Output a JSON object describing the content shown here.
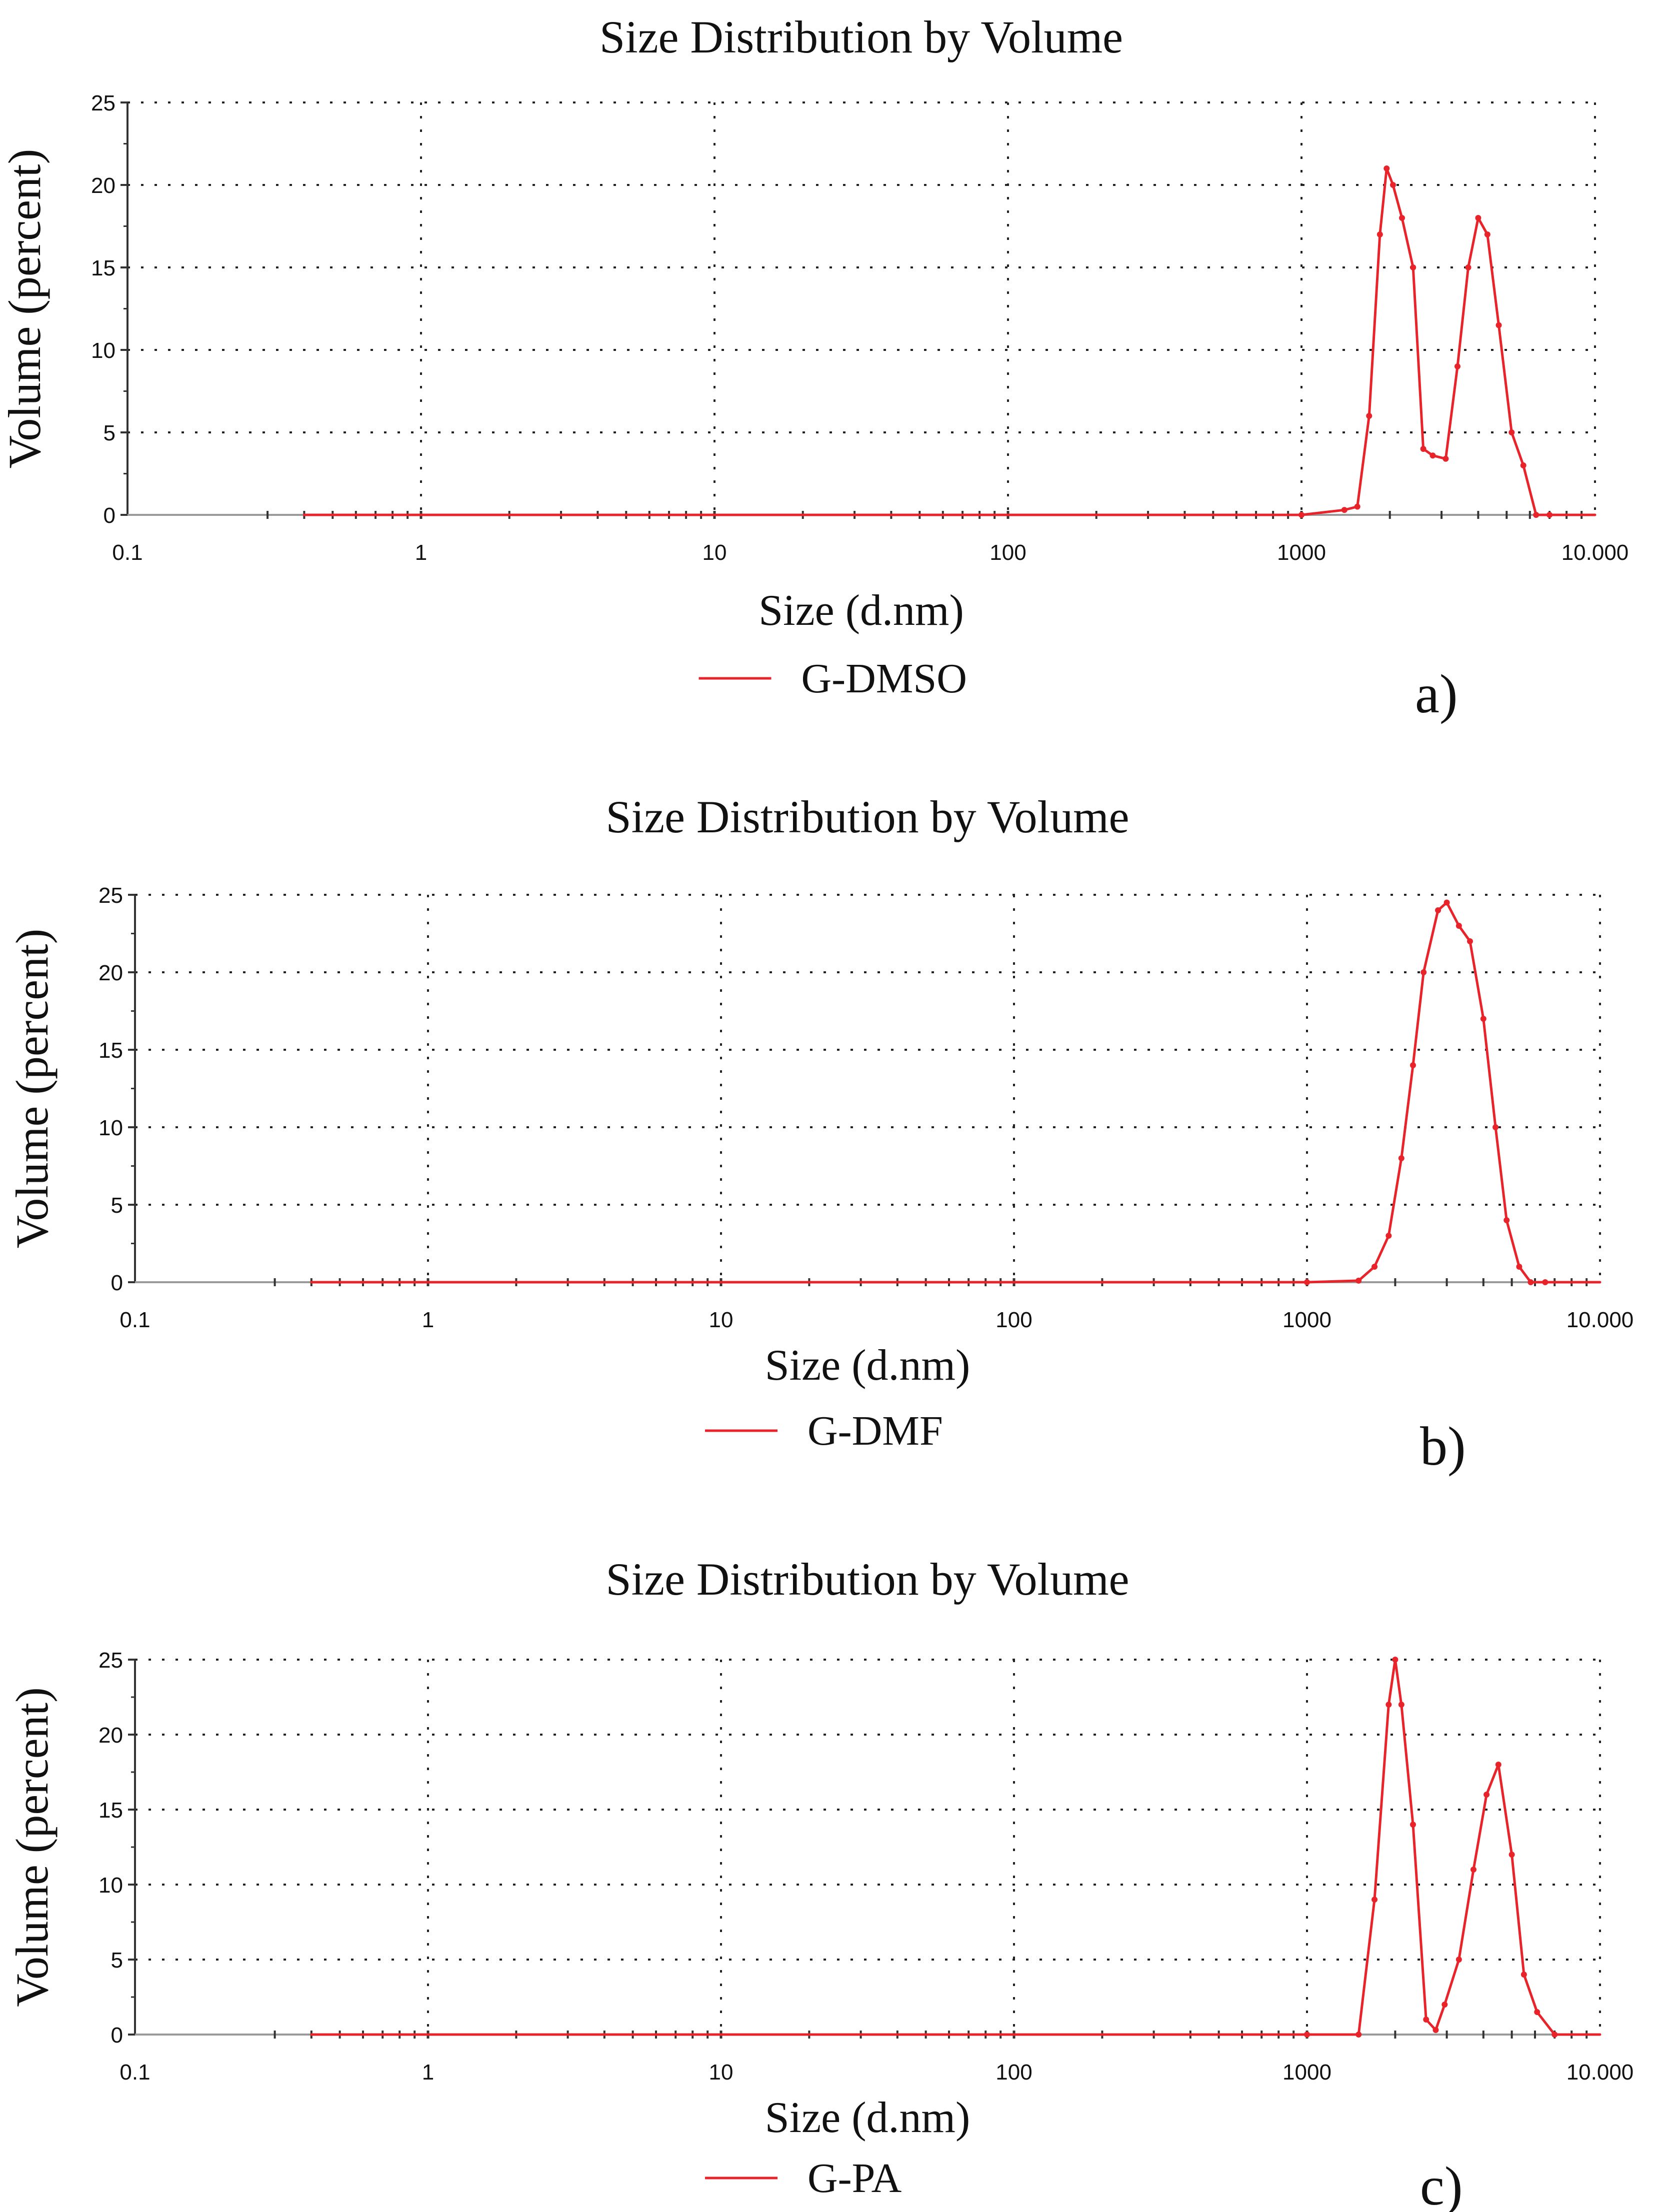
{
  "colors": {
    "series": "#e8242a",
    "grid": "#222222",
    "axis": "#333333",
    "text": "#111111"
  },
  "chart_data": [
    {
      "type": "line",
      "title": "Size Distribution by Volume",
      "xlabel": "Size (d.nm)",
      "ylabel": "Volume (percent)",
      "x_scale": "log",
      "xlim": [
        0.1,
        10000
      ],
      "ylim": [
        0,
        25
      ],
      "x_ticks": [
        0.1,
        1,
        10,
        100,
        1000,
        10000
      ],
      "x_tick_labels": [
        "0.1",
        "1",
        "10",
        "100",
        "1000",
        "10.000"
      ],
      "y_ticks": [
        0,
        5,
        10,
        15,
        20,
        25
      ],
      "y_tick_labels": [
        "0",
        "5",
        "10",
        "15",
        "20",
        "25"
      ],
      "grid": true,
      "legend_position": "bottom-center",
      "panel_label": "a)",
      "series": [
        {
          "name": "G-DMSO",
          "x": [
            0.4,
            1000,
            1400,
            1550,
            1700,
            1850,
            1950,
            2050,
            2200,
            2400,
            2600,
            2800,
            3100,
            3400,
            3700,
            4000,
            4300,
            4700,
            5200,
            5700,
            6300,
            7000,
            10000
          ],
          "y": [
            0,
            0,
            0.3,
            0.5,
            6,
            17,
            21,
            20,
            18,
            15,
            4,
            3.6,
            3.4,
            9,
            15,
            18,
            17,
            11.5,
            5,
            3,
            0,
            0,
            0
          ]
        }
      ]
    },
    {
      "type": "line",
      "title": "Size Distribution by Volume",
      "xlabel": "Size (d.nm)",
      "ylabel": "Volume (percent)",
      "x_scale": "log",
      "xlim": [
        0.1,
        10000
      ],
      "ylim": [
        0,
        25
      ],
      "x_ticks": [
        0.1,
        1,
        10,
        100,
        1000,
        10000
      ],
      "x_tick_labels": [
        "0.1",
        "1",
        "10",
        "100",
        "1000",
        "10.000"
      ],
      "y_ticks": [
        0,
        5,
        10,
        15,
        20,
        25
      ],
      "y_tick_labels": [
        "0",
        "5",
        "10",
        "15",
        "20",
        "25"
      ],
      "grid": true,
      "legend_position": "bottom-center",
      "panel_label": "b)",
      "series": [
        {
          "name": "G-DMF",
          "x": [
            0.4,
            1000,
            1500,
            1700,
            1900,
            2100,
            2300,
            2500,
            2800,
            3000,
            3300,
            3600,
            4000,
            4400,
            4800,
            5300,
            5800,
            6500,
            10000
          ],
          "y": [
            0,
            0,
            0.1,
            1,
            3,
            8,
            14,
            20,
            24,
            24.5,
            23,
            22,
            17,
            10,
            4,
            1,
            0,
            0,
            0
          ]
        }
      ]
    },
    {
      "type": "line",
      "title": "Size Distribution by Volume",
      "xlabel": "Size (d.nm)",
      "ylabel": "Volume (percent)",
      "x_scale": "log",
      "xlim": [
        0.1,
        10000
      ],
      "ylim": [
        0,
        25
      ],
      "x_ticks": [
        0.1,
        1,
        10,
        100,
        1000,
        10000
      ],
      "x_tick_labels": [
        "0.1",
        "1",
        "10",
        "100",
        "1000",
        "10.000"
      ],
      "y_ticks": [
        0,
        5,
        10,
        15,
        20,
        25
      ],
      "y_tick_labels": [
        "0",
        "5",
        "10",
        "15",
        "20",
        "25"
      ],
      "grid": true,
      "legend_position": "bottom-center",
      "panel_label": "c)",
      "series": [
        {
          "name": "G-PA",
          "x": [
            0.4,
            1000,
            1500,
            1700,
            1900,
            2000,
            2100,
            2300,
            2550,
            2750,
            2950,
            3300,
            3700,
            4100,
            4500,
            5000,
            5500,
            6100,
            7000,
            10000
          ],
          "y": [
            0,
            0,
            0,
            9,
            22,
            25,
            22,
            14,
            1,
            0.3,
            2,
            5,
            11,
            16,
            18,
            12,
            4,
            1.5,
            0,
            0
          ]
        }
      ]
    }
  ]
}
